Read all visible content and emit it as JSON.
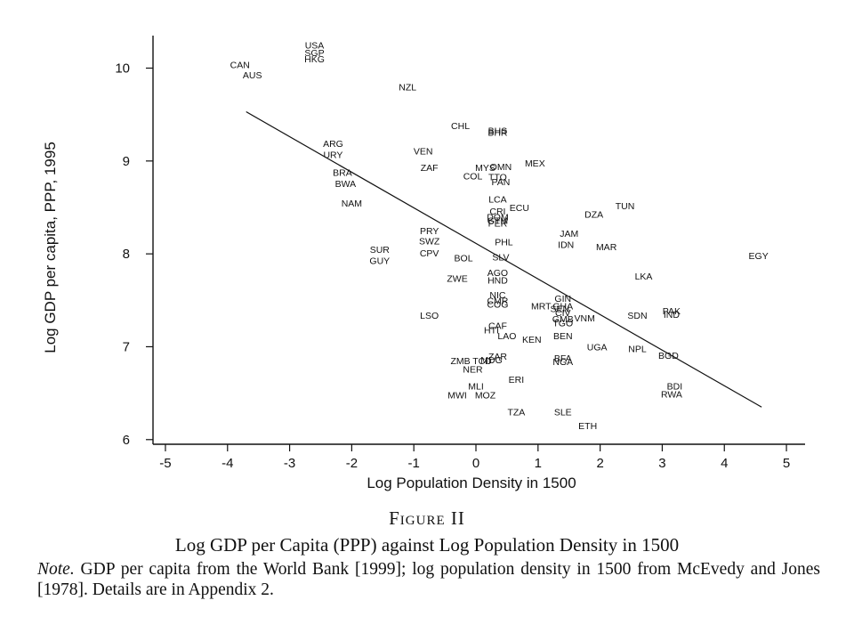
{
  "chart_data": {
    "type": "scatter",
    "xlabel": "Log Population Density in 1500",
    "ylabel": "Log GDP per capita, PPP, 1995",
    "xlim": [
      -5.2,
      5.3
    ],
    "ylim": [
      5.95,
      10.35
    ],
    "xticks": [
      "-5",
      "-4",
      "-3",
      "-2",
      "-1",
      "0",
      "1",
      "2",
      "3",
      "4",
      "5"
    ],
    "yticks": [
      "6",
      "7",
      "8",
      "9",
      "10"
    ],
    "grid": false,
    "legend": "none",
    "fit_line": {
      "x": [
        -3.7,
        4.6
      ],
      "y": [
        9.53,
        6.35
      ]
    },
    "points": [
      {
        "label": "USA",
        "x": -2.6,
        "y": 10.25
      },
      {
        "label": "SGP",
        "x": -2.6,
        "y": 10.17
      },
      {
        "label": "HKG",
        "x": -2.6,
        "y": 10.1
      },
      {
        "label": "CAN",
        "x": -3.8,
        "y": 10.04
      },
      {
        "label": "AUS",
        "x": -3.6,
        "y": 9.93
      },
      {
        "label": "NZL",
        "x": -1.1,
        "y": 9.8
      },
      {
        "label": "CHL",
        "x": -0.25,
        "y": 9.38
      },
      {
        "label": "BHS",
        "x": 0.35,
        "y": 9.33
      },
      {
        "label": "BHR",
        "x": 0.35,
        "y": 9.31
      },
      {
        "label": "ARG",
        "x": -2.3,
        "y": 9.19
      },
      {
        "label": "URY",
        "x": -2.3,
        "y": 9.07
      },
      {
        "label": "VEN",
        "x": -0.85,
        "y": 9.11
      },
      {
        "label": "MEX",
        "x": 0.95,
        "y": 8.98
      },
      {
        "label": "ZAF",
        "x": -0.75,
        "y": 8.93
      },
      {
        "label": "MYS",
        "x": 0.15,
        "y": 8.93
      },
      {
        "label": "OMN",
        "x": 0.4,
        "y": 8.94
      },
      {
        "label": "BRA",
        "x": -2.15,
        "y": 8.88
      },
      {
        "label": "COL",
        "x": -0.05,
        "y": 8.84
      },
      {
        "label": "TTO",
        "x": 0.35,
        "y": 8.83
      },
      {
        "label": "PAN",
        "x": 0.4,
        "y": 8.78
      },
      {
        "label": "BWA",
        "x": -2.1,
        "y": 8.76
      },
      {
        "label": "LCA",
        "x": 0.35,
        "y": 8.59
      },
      {
        "label": "ECU",
        "x": 0.7,
        "y": 8.5
      },
      {
        "label": "CRI",
        "x": 0.35,
        "y": 8.46
      },
      {
        "label": "TUN",
        "x": 2.4,
        "y": 8.52
      },
      {
        "label": "NAM",
        "x": -2.0,
        "y": 8.55
      },
      {
        "label": "DOM",
        "x": 0.35,
        "y": 8.4
      },
      {
        "label": "DZA",
        "x": 1.9,
        "y": 8.43
      },
      {
        "label": "GTM",
        "x": 0.35,
        "y": 8.36
      },
      {
        "label": "PER",
        "x": 0.35,
        "y": 8.33
      },
      {
        "label": "PRY",
        "x": -0.75,
        "y": 8.25
      },
      {
        "label": "JAM",
        "x": 1.5,
        "y": 8.22
      },
      {
        "label": "SWZ",
        "x": -0.75,
        "y": 8.14
      },
      {
        "label": "PHL",
        "x": 0.45,
        "y": 8.13
      },
      {
        "label": "IDN",
        "x": 1.45,
        "y": 8.1
      },
      {
        "label": "MAR",
        "x": 2.1,
        "y": 8.08
      },
      {
        "label": "SUR",
        "x": -1.55,
        "y": 8.05
      },
      {
        "label": "CPV",
        "x": -0.75,
        "y": 8.01
      },
      {
        "label": "EGY",
        "x": 4.55,
        "y": 7.98
      },
      {
        "label": "GUY",
        "x": -1.55,
        "y": 7.93
      },
      {
        "label": "BOL",
        "x": -0.2,
        "y": 7.96
      },
      {
        "label": "SLV",
        "x": 0.4,
        "y": 7.97
      },
      {
        "label": "AGO",
        "x": 0.35,
        "y": 7.8
      },
      {
        "label": "LKA",
        "x": 2.7,
        "y": 7.76
      },
      {
        "label": "ZWE",
        "x": -0.3,
        "y": 7.74
      },
      {
        "label": "HND",
        "x": 0.35,
        "y": 7.72
      },
      {
        "label": "NIC",
        "x": 0.35,
        "y": 7.56
      },
      {
        "label": "GIN",
        "x": 1.4,
        "y": 7.52
      },
      {
        "label": "CMR",
        "x": 0.35,
        "y": 7.5
      },
      {
        "label": "COG",
        "x": 0.35,
        "y": 7.46
      },
      {
        "label": "MRT",
        "x": 1.05,
        "y": 7.44
      },
      {
        "label": "GHA",
        "x": 1.4,
        "y": 7.44
      },
      {
        "label": "SEN",
        "x": 1.35,
        "y": 7.41
      },
      {
        "label": "PAK",
        "x": 3.15,
        "y": 7.39
      },
      {
        "label": "CIV",
        "x": 1.4,
        "y": 7.37
      },
      {
        "label": "IND",
        "x": 3.15,
        "y": 7.35
      },
      {
        "label": "SDN",
        "x": 2.6,
        "y": 7.34
      },
      {
        "label": "LSO",
        "x": -0.75,
        "y": 7.34
      },
      {
        "label": "VNM",
        "x": 1.75,
        "y": 7.31
      },
      {
        "label": "GMB",
        "x": 1.4,
        "y": 7.3
      },
      {
        "label": "TGO",
        "x": 1.4,
        "y": 7.26
      },
      {
        "label": "CAF",
        "x": 0.35,
        "y": 7.23
      },
      {
        "label": "HTI",
        "x": 0.25,
        "y": 7.18
      },
      {
        "label": "LAO",
        "x": 0.5,
        "y": 7.12
      },
      {
        "label": "BEN",
        "x": 1.4,
        "y": 7.12
      },
      {
        "label": "KEN",
        "x": 0.9,
        "y": 7.08
      },
      {
        "label": "UGA",
        "x": 1.95,
        "y": 7.0
      },
      {
        "label": "NPL",
        "x": 2.6,
        "y": 6.98
      },
      {
        "label": "BGD",
        "x": 3.1,
        "y": 6.91
      },
      {
        "label": "ZAR",
        "x": 0.35,
        "y": 6.9
      },
      {
        "label": "ZMB",
        "x": -0.25,
        "y": 6.85
      },
      {
        "label": "TCD",
        "x": 0.1,
        "y": 6.85
      },
      {
        "label": "MDG",
        "x": 0.25,
        "y": 6.86
      },
      {
        "label": "BFA",
        "x": 1.4,
        "y": 6.88
      },
      {
        "label": "NGA",
        "x": 1.4,
        "y": 6.84
      },
      {
        "label": "NER",
        "x": -0.05,
        "y": 6.76
      },
      {
        "label": "ERI",
        "x": 0.65,
        "y": 6.65
      },
      {
        "label": "MLI",
        "x": 0.0,
        "y": 6.58
      },
      {
        "label": "BDI",
        "x": 3.2,
        "y": 6.58
      },
      {
        "label": "RWA",
        "x": 3.15,
        "y": 6.49
      },
      {
        "label": "MWI",
        "x": -0.3,
        "y": 6.48
      },
      {
        "label": "MOZ",
        "x": 0.15,
        "y": 6.48
      },
      {
        "label": "TZA",
        "x": 0.65,
        "y": 6.3
      },
      {
        "label": "SLE",
        "x": 1.4,
        "y": 6.3
      },
      {
        "label": "ETH",
        "x": 1.8,
        "y": 6.15
      }
    ]
  },
  "caption": {
    "figure_label": "Figure II",
    "title": "Log GDP per Capita (PPP) against Log Population Density in 1500",
    "note_label": "Note.",
    "note_text": " GDP per capita from the World Bank [1999]; log population density in 1500 from McEvedy and Jones [1978]. Details are in Appendix 2."
  }
}
